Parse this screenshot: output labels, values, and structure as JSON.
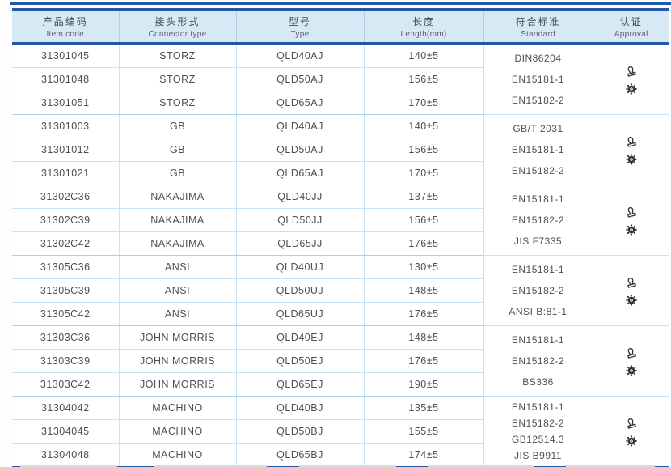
{
  "colors": {
    "border_blue": "#2357a7",
    "header_fill": "#d8e9f6",
    "grid_light": "#c6e4f4",
    "grid_group": "#a6d2ea",
    "header_text": "#3e4b57",
    "body_text": "#4f4f4f",
    "icon_dark": "#333333"
  },
  "table": {
    "columns": [
      {
        "zh": "产品编码",
        "en": "Item code"
      },
      {
        "zh": "接头形式",
        "en": "Connector type"
      },
      {
        "zh": "型号",
        "en": "Type"
      },
      {
        "zh": "长度",
        "en": "Length(mm)"
      },
      {
        "zh": "符合标准",
        "en": "Standard"
      },
      {
        "zh": "认证",
        "en": "Approval"
      }
    ],
    "groups": [
      {
        "rows": [
          {
            "item_code": "31301045",
            "connector_type": "STORZ",
            "type": "QLD40AJ",
            "length": "140±5"
          },
          {
            "item_code": "31301048",
            "connector_type": "STORZ",
            "type": "QLD50AJ",
            "length": "156±5"
          },
          {
            "item_code": "31301051",
            "connector_type": "STORZ",
            "type": "QLD65AJ",
            "length": "170±5"
          }
        ],
        "standards": [
          "DIN86204",
          "EN15181-1",
          "EN15182-2"
        ],
        "approvals": [
          "certificate-stamp-icon",
          "wheelmark-seal-icon"
        ]
      },
      {
        "rows": [
          {
            "item_code": "31301003",
            "connector_type": "GB",
            "type": "QLD40AJ",
            "length": "140±5"
          },
          {
            "item_code": "31301012",
            "connector_type": "GB",
            "type": "QLD50AJ",
            "length": "156±5"
          },
          {
            "item_code": "31301021",
            "connector_type": "GB",
            "type": "QLD65AJ",
            "length": "170±5"
          }
        ],
        "standards": [
          "GB/T 2031",
          "EN15181-1",
          "EN15182-2"
        ],
        "approvals": [
          "certificate-stamp-icon",
          "wheelmark-seal-icon"
        ]
      },
      {
        "rows": [
          {
            "item_code": "31302C36",
            "connector_type": "NAKAJIMA",
            "type": "QLD40JJ",
            "length": "137±5"
          },
          {
            "item_code": "31302C39",
            "connector_type": "NAKAJIMA",
            "type": "QLD50JJ",
            "length": "156±5"
          },
          {
            "item_code": "31302C42",
            "connector_type": "NAKAJIMA",
            "type": "QLD65JJ",
            "length": "176±5"
          }
        ],
        "standards": [
          "EN15181-1",
          "EN15182-2",
          "JIS F7335"
        ],
        "approvals": [
          "certificate-stamp-icon",
          "wheelmark-seal-icon"
        ]
      },
      {
        "rows": [
          {
            "item_code": "31305C36",
            "connector_type": "ANSI",
            "type": "QLD40UJ",
            "length": "130±5"
          },
          {
            "item_code": "31305C39",
            "connector_type": "ANSI",
            "type": "QLD50UJ",
            "length": "148±5"
          },
          {
            "item_code": "31305C42",
            "connector_type": "ANSI",
            "type": "QLD65UJ",
            "length": "176±5"
          }
        ],
        "standards": [
          "EN15181-1",
          "EN15182-2",
          "ANSI B:81-1"
        ],
        "approvals": [
          "certificate-stamp-icon",
          "wheelmark-seal-icon"
        ]
      },
      {
        "rows": [
          {
            "item_code": "31303C36",
            "connector_type": "JOHN MORRIS",
            "type": "QLD40EJ",
            "length": "148±5"
          },
          {
            "item_code": "31303C39",
            "connector_type": "JOHN MORRIS",
            "type": "QLD50EJ",
            "length": "176±5"
          },
          {
            "item_code": "31303C42",
            "connector_type": "JOHN MORRIS",
            "type": "QLD65EJ",
            "length": "190±5"
          }
        ],
        "standards": [
          "EN15181-1",
          "EN15182-2",
          "BS336"
        ],
        "approvals": [
          "certificate-stamp-icon",
          "wheelmark-seal-icon"
        ]
      },
      {
        "rows": [
          {
            "item_code": "31304042",
            "connector_type": "MACHINO",
            "type": "QLD40BJ",
            "length": "135±5"
          },
          {
            "item_code": "31304045",
            "connector_type": "MACHINO",
            "type": "QLD50BJ",
            "length": "155±5"
          },
          {
            "item_code": "31304048",
            "connector_type": "MACHINO",
            "type": "QLD65BJ",
            "length": "174±5"
          }
        ],
        "standards": [
          "EN15181-1",
          "EN15182-2",
          "GB12514.3",
          "JIS B9911"
        ],
        "approvals": [
          "certificate-stamp-icon",
          "wheelmark-seal-icon"
        ]
      }
    ]
  }
}
